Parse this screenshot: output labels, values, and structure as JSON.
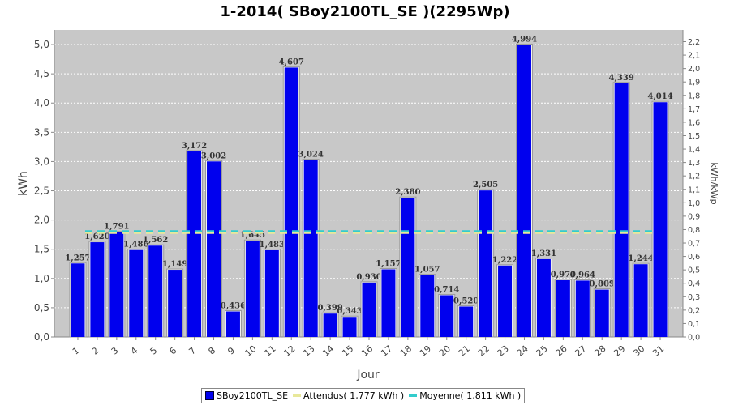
{
  "chart_data": {
    "type": "bar",
    "title": "1-2014( SBoy2100TL_SE )(2295Wp)",
    "xlabel": "Jour",
    "ylabel": "kWh",
    "ylabel_right": "kWh/kWp",
    "categories": [
      "1",
      "2",
      "3",
      "4",
      "5",
      "6",
      "7",
      "8",
      "9",
      "10",
      "11",
      "12",
      "13",
      "14",
      "15",
      "16",
      "17",
      "18",
      "19",
      "20",
      "21",
      "22",
      "23",
      "24",
      "25",
      "26",
      "27",
      "28",
      "29",
      "30",
      "31"
    ],
    "series": [
      {
        "name": "SBoy2100TL_SE",
        "color": "#0000ee",
        "values": [
          1.257,
          1.62,
          1.791,
          1.486,
          1.562,
          1.149,
          3.172,
          3.002,
          0.436,
          1.645,
          1.483,
          4.607,
          3.024,
          0.399,
          0.343,
          0.93,
          1.157,
          2.38,
          1.057,
          0.714,
          0.52,
          2.505,
          1.222,
          4.994,
          1.331,
          0.97,
          0.964,
          0.809,
          4.339,
          1.244,
          4.014
        ],
        "labels": [
          "1,257",
          "1,620",
          "1,791",
          "1,486",
          "1,562",
          "1,149",
          "3,172",
          "3,002",
          "0,436",
          "1,645",
          "1,483",
          "4,607",
          "3,024",
          "0,399",
          "0,343",
          "0,930",
          "1,157",
          "2,380",
          "1,057",
          "0,714",
          "0,520",
          "2,505",
          "1,222",
          "4,994",
          "1,331",
          "0,970",
          "0,964",
          "0,809",
          "4,339",
          "1,244",
          "4,014"
        ]
      }
    ],
    "reference_lines": [
      {
        "name": "Attendus",
        "label": "Attendus( 1,777 kWh )",
        "value": 1.777,
        "color": "#e8e89a"
      },
      {
        "name": "Moyenne",
        "label": "Moyenne( 1,811 kWh )",
        "value": 1.811,
        "color": "#33cccc"
      }
    ],
    "ylim": [
      0,
      5.25
    ],
    "yticks": [
      "0,0",
      "0,5",
      "1,0",
      "1,5",
      "2,0",
      "2,5",
      "3,0",
      "3,5",
      "4,0",
      "4,5",
      "5,0"
    ],
    "ylim_right": [
      0,
      2.2876
    ],
    "yticks_right": [
      "0,0",
      "0,1",
      "0,2",
      "0,3",
      "0,4",
      "0,5",
      "0,6",
      "0,7",
      "0,8",
      "0,9",
      "1,0",
      "1,1",
      "1,2",
      "1,3",
      "1,4",
      "1,5",
      "1,6",
      "1,7",
      "1,8",
      "1,9",
      "2,0",
      "2,1",
      "2,2"
    ],
    "grid": true,
    "legend_position": "bottom",
    "plot_background": "#c8c8c8"
  }
}
